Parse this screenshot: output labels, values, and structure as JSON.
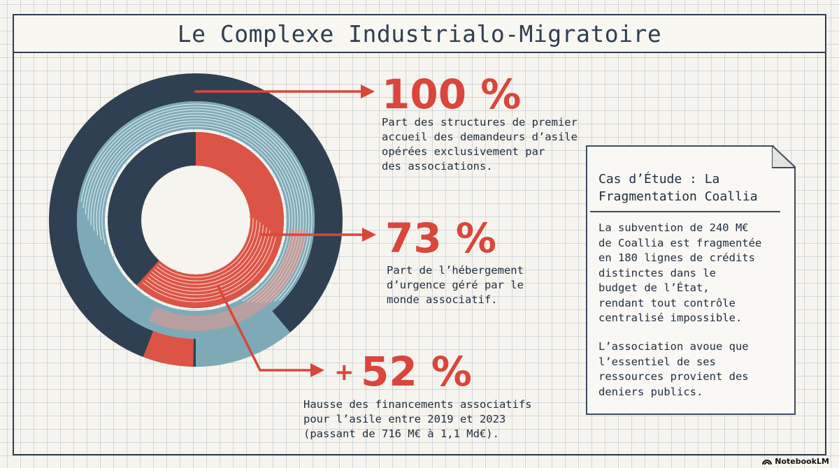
{
  "title": "Le Complexe Industrialo-Migratoire",
  "colors": {
    "navy": "#2f4052",
    "teal": "#7eaab8",
    "red": "#dc5445",
    "accent_red": "#d9463b"
  },
  "chart_data": {
    "type": "pie",
    "rings": [
      {
        "name": "",
        "value_percent": 100
      },
      {
        "name": "",
        "value_percent": 73
      },
      {
        "name": "",
        "value_percent": 52
      }
    ]
  },
  "stats": [
    {
      "value": "100 %",
      "description": "Part des structures de premier\naccueil des demandeurs d’asile\nopérées exclusivement par\ndes associations."
    },
    {
      "value": "73 %",
      "description": "Part de l’hébergement\nd’urgence géré par le\nmonde associatif."
    },
    {
      "prefix": "+",
      "value": "52 %",
      "description": "Hausse des financements associatifs\npour l’asile entre 2019 et 2023\n(passant de 716 M€ à 1,1 Md€)."
    }
  ],
  "case_study": {
    "title": "Cas d’Étude : La\nFragmentation Coallia",
    "paragraph_1": "La subvention de 240 M€\nde Coallia est fragmentée\nen 180 lignes de crédits\ndistinctes dans le\nbudget de l’État,\nrendant tout contrôle\ncentralisé impossible.",
    "paragraph_2": "L’association avoue que\nl’essentiel de ses\nressources provient des\ndeniers publics."
  },
  "brand": "NotebookLM"
}
